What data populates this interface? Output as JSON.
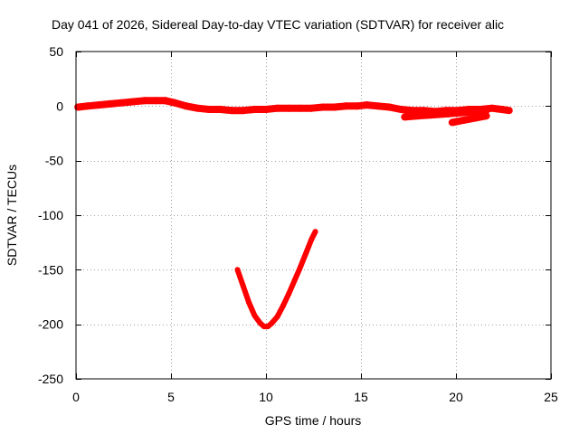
{
  "chart_data": {
    "type": "line",
    "title": "Day 041 of 2026, Sidereal Day-to-day VTEC variation (SDTVAR) for receiver alic",
    "xlabel": "GPS time / hours",
    "ylabel": "SDTVAR / TECUs",
    "xlim": [
      0,
      25
    ],
    "ylim": [
      -250,
      50
    ],
    "xticks": [
      0,
      5,
      10,
      15,
      20,
      25
    ],
    "yticks": [
      50,
      0,
      -50,
      -100,
      -150,
      -200,
      -250
    ],
    "grid": true,
    "legend": "none",
    "series": [
      {
        "color": "#ff0000",
        "x": [
          0.1,
          0.6,
          1.2,
          1.8,
          2.4,
          3.0,
          3.6,
          4.2,
          4.7,
          5.2,
          5.8,
          6.4,
          7.0,
          7.6,
          8.2,
          8.8,
          9.4,
          10.0,
          10.6,
          11.2,
          11.8,
          12.4,
          13.0,
          13.6,
          14.2,
          14.8,
          15.3,
          15.9,
          16.5,
          17.1,
          17.7,
          18.3,
          18.9,
          19.5,
          20.1,
          20.7,
          21.3,
          21.9,
          22.4,
          22.8
        ],
        "values": [
          -1,
          0,
          1,
          2,
          3,
          4,
          5,
          5,
          5,
          3,
          0,
          -2,
          -3,
          -3,
          -4,
          -4,
          -3,
          -3,
          -2,
          -2,
          -2,
          -2,
          -1,
          -1,
          0,
          0,
          1,
          0,
          -1,
          -3,
          -4,
          -4,
          -5,
          -4,
          -4,
          -3,
          -3,
          -2,
          -3,
          -4
        ]
      },
      {
        "color": "#ff0000",
        "x": [
          17.3,
          18.0,
          18.8,
          19.6,
          20.3,
          21.0,
          21.6
        ],
        "values": [
          -10,
          -9,
          -8,
          -7,
          -6,
          -5,
          -4
        ]
      },
      {
        "color": "#ff0000",
        "x": [
          19.8,
          20.4,
          21.0,
          21.6
        ],
        "values": [
          -15,
          -13,
          -11,
          -9
        ]
      },
      {
        "color": "#ff0000",
        "x": [
          8.5,
          8.8,
          9.1,
          9.4,
          9.7,
          9.9,
          10.1,
          10.3,
          10.6,
          10.9,
          11.2,
          11.5,
          11.8,
          12.1,
          12.4,
          12.6
        ],
        "values": [
          -150,
          -165,
          -180,
          -192,
          -199,
          -202,
          -202,
          -199,
          -193,
          -183,
          -172,
          -160,
          -148,
          -135,
          -122,
          -115
        ]
      }
    ]
  }
}
